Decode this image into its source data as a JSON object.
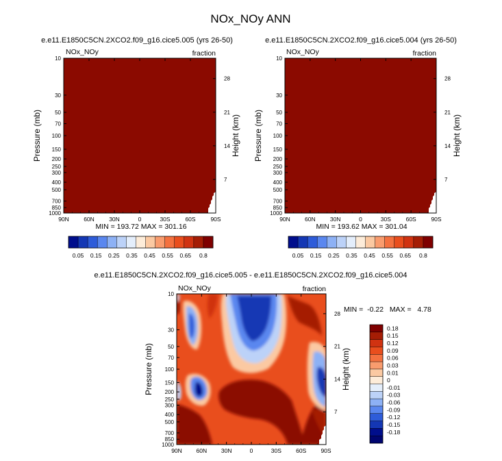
{
  "figure_title": "NOx_NOy ANN",
  "chart_data": [
    {
      "type": "heatmap",
      "title": "e.e11.E1850C5CN.2XCO2.f09_g16.cice5.005 (yrs 26-50)",
      "variable": "NOx_NOy",
      "units": "fraction",
      "ylabel": "Pressure (mb)",
      "ylabel_right": "Height (km)",
      "xticks": [
        "90N",
        "60N",
        "30N",
        "0",
        "30S",
        "60S",
        "90S"
      ],
      "yticks_pressure": [
        "10",
        "30",
        "50",
        "70",
        "100",
        "150",
        "200",
        "250",
        "300",
        "400",
        "500",
        "700",
        "850",
        "1000"
      ],
      "yticks_height": [
        "28",
        "21",
        "14",
        "7"
      ],
      "stats": "MIN = 193.72   MAX = 301.16",
      "fill_color": "#8b0a00",
      "colorbar": {
        "labels": [
          "0.05",
          "0.15",
          "0.25",
          "0.35",
          "0.45",
          "0.55",
          "0.65",
          "0.8"
        ],
        "colors": [
          "#000e8c",
          "#1437b4",
          "#2e5cd9",
          "#5a87ef",
          "#8db1f5",
          "#bcd2f8",
          "#e4eefb",
          "#fdecd9",
          "#fbc9a2",
          "#f99c6e",
          "#f4713f",
          "#e94e1d",
          "#d03311",
          "#a51d05",
          "#7f0000"
        ]
      }
    },
    {
      "type": "heatmap",
      "title": "e.e11.E1850C5CN.2XCO2.f09_g16.cice5.004 (yrs 26-50)",
      "variable": "NOx_NOy",
      "units": "fraction",
      "ylabel": "Pressure (mb)",
      "ylabel_right": "Height (km)",
      "xticks": [
        "90N",
        "60N",
        "30N",
        "0",
        "30S",
        "60S",
        "90S"
      ],
      "yticks_pressure": [
        "10",
        "30",
        "50",
        "70",
        "100",
        "150",
        "200",
        "250",
        "300",
        "400",
        "500",
        "700",
        "850",
        "1000"
      ],
      "yticks_height": [
        "28",
        "21",
        "14",
        "7"
      ],
      "stats": "MIN = 193.62   MAX = 301.04",
      "fill_color": "#8b0a00",
      "colorbar": {
        "labels": [
          "0.05",
          "0.15",
          "0.25",
          "0.35",
          "0.45",
          "0.55",
          "0.65",
          "0.8"
        ],
        "colors": [
          "#000e8c",
          "#1437b4",
          "#2e5cd9",
          "#5a87ef",
          "#8db1f5",
          "#bcd2f8",
          "#e4eefb",
          "#fdecd9",
          "#fbc9a2",
          "#f99c6e",
          "#f4713f",
          "#e94e1d",
          "#d03311",
          "#a51d05",
          "#7f0000"
        ]
      }
    },
    {
      "type": "heatmap",
      "title": "e.e11.E1850C5CN.2XCO2.f09_g16.cice5.005 - e.e11.E1850C5CN.2XCO2.f09_g16.cice5.004",
      "variable": "NOx_NOy",
      "units": "fraction",
      "ylabel": "Pressure (mb)",
      "ylabel_right": "Height (km)",
      "xticks": [
        "90N",
        "60N",
        "30N",
        "0",
        "30S",
        "60S",
        "90S"
      ],
      "yticks_pressure": [
        "10",
        "30",
        "50",
        "70",
        "100",
        "150",
        "200",
        "250",
        "300",
        "400",
        "500",
        "700",
        "850",
        "1000"
      ],
      "yticks_height": [
        "28",
        "21",
        "14",
        "7"
      ],
      "stats": "MIN =  -0.22   MAX =   4.78",
      "colorbar": {
        "labels": [
          "0.18",
          "0.15",
          "0.12",
          "0.09",
          "0.06",
          "0.03",
          "0.01",
          "0",
          "-0.01",
          "-0.03",
          "-0.06",
          "-0.09",
          "-0.12",
          "-0.15",
          "-0.18"
        ],
        "colors": [
          "#7f0000",
          "#a51d05",
          "#d03311",
          "#e94e1d",
          "#f4713f",
          "#f99c6e",
          "#fbc9a2",
          "#fdecd9",
          "#e4eefb",
          "#bcd2f8",
          "#8db1f5",
          "#5a87ef",
          "#2e5cd9",
          "#1437b4",
          "#000e8c",
          "#000570"
        ]
      }
    }
  ]
}
